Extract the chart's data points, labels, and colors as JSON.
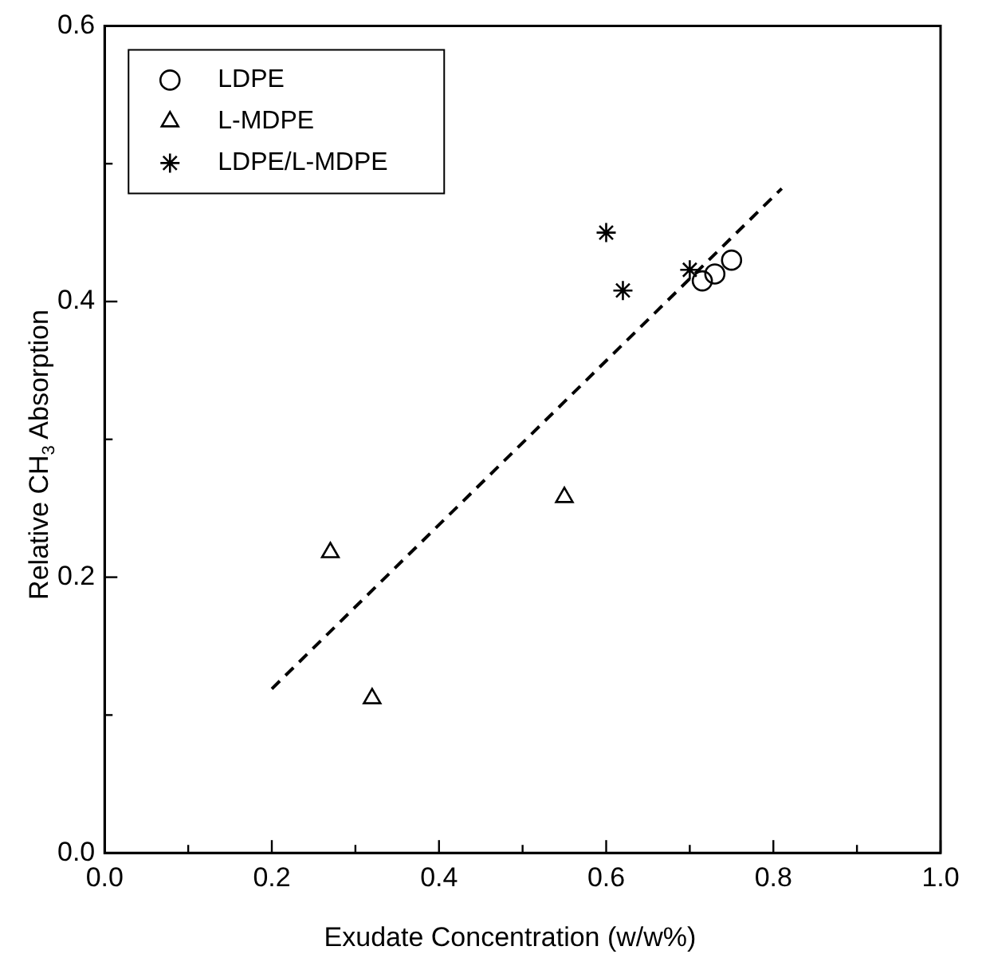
{
  "chart_data": {
    "type": "scatter",
    "xlabel": "Exudate Concentration (w/w%)",
    "ylabel": "Relative CH$_{3}$ Absorption",
    "xlim": [
      0,
      1
    ],
    "ylim": [
      0,
      0.6
    ],
    "xticks": [
      {
        "value": 0,
        "label": "0.0"
      },
      {
        "value": 0.1,
        "label": null
      },
      {
        "value": 0.2,
        "label": "0.2"
      },
      {
        "value": 0.3,
        "label": null
      },
      {
        "value": 0.4,
        "label": "0.4"
      },
      {
        "value": 0.5,
        "label": null
      },
      {
        "value": 0.6,
        "label": "0.6"
      },
      {
        "value": 0.7,
        "label": null
      },
      {
        "value": 0.8,
        "label": "0.8"
      },
      {
        "value": 0.9,
        "label": null
      },
      {
        "value": 1,
        "label": "1.0"
      }
    ],
    "yticks": [
      {
        "value": 0,
        "label": "0.0"
      },
      {
        "value": 0.1,
        "label": null
      },
      {
        "value": 0.2,
        "label": "0.2"
      },
      {
        "value": 0.3,
        "label": null
      },
      {
        "value": 0.4,
        "label": "0.4"
      },
      {
        "value": 0.5,
        "label": null
      },
      {
        "value": 0.6,
        "label": "0.6"
      }
    ],
    "grid": false,
    "legend": "top left",
    "series": [
      {
        "name": "LDPE",
        "color": "#000000",
        "marker": "circle",
        "x": [
          0.715,
          0.73,
          0.75
        ],
        "values": [
          0.415,
          0.42,
          0.43
        ]
      },
      {
        "name": "L-MDPE",
        "color": "#000000",
        "marker": "triangle",
        "x": [
          0.27,
          0.32,
          0.55
        ],
        "values": [
          0.218,
          0.112,
          0.258
        ]
      },
      {
        "name": "LDPE/L-MDPE",
        "color": "#000000",
        "marker": "cross",
        "x": [
          0.6,
          0.62,
          0.7
        ],
        "values": [
          0.45,
          0.408,
          0.423
        ]
      },
      {
        "type": "line",
        "color": "#000000",
        "line_style": "dashed",
        "marker": "none",
        "x": [
          0.2,
          0.81
        ],
        "values": [
          0.119,
          0.482
        ]
      }
    ]
  }
}
